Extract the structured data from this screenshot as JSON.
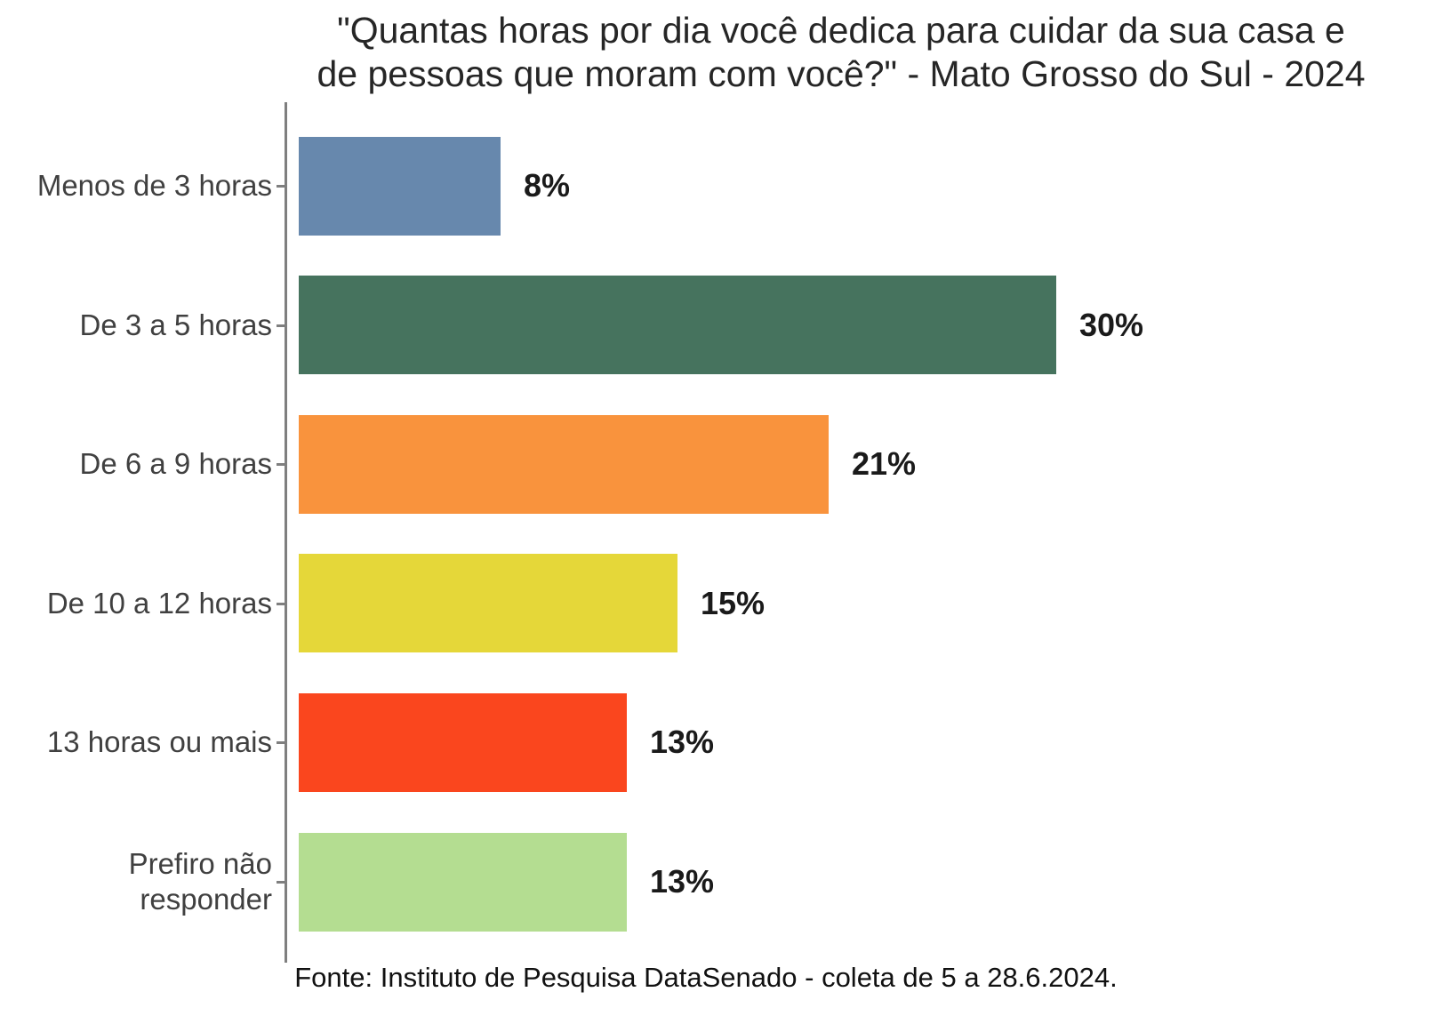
{
  "title": "\"Quantas horas por dia você dedica para cuidar da sua casa e\nde pessoas que moram com você?\" - Mato Grosso do Sul - 2024",
  "footer": "Fonte: Instituto de Pesquisa DataSenado - coleta de 5 a 28.6.2024.",
  "chart_data": {
    "type": "bar",
    "orientation": "horizontal",
    "title": "\"Quantas horas por dia você dedica para cuidar da sua casa e de pessoas que moram com você?\" - Mato Grosso do Sul - 2024",
    "xlabel": "",
    "ylabel": "",
    "x_axis_ticks": "hidden",
    "grid": "off",
    "legend": "none",
    "value_unit": "percent",
    "xlim": [
      0,
      44
    ],
    "categories": [
      "Menos de 3 horas",
      "De 3 a 5 horas",
      "De 6 a 9 horas",
      "De 10 a 12 horas",
      "13 horas ou mais",
      "Prefiro não responder"
    ],
    "values": [
      8,
      30,
      21,
      15,
      13,
      13
    ],
    "axis_line_color": "#7f7f7f",
    "rows": [
      {
        "category": "Menos de 3 horas",
        "value": 8,
        "value_label": "8%",
        "color": "#6788ad"
      },
      {
        "category": "De 3 a 5 horas",
        "value": 30,
        "value_label": "30%",
        "color": "#46735e"
      },
      {
        "category": "De 6 a 9 horas",
        "value": 21,
        "value_label": "21%",
        "color": "#f9933d"
      },
      {
        "category": "De 10 a 12 horas",
        "value": 15,
        "value_label": "15%",
        "color": "#e5d739"
      },
      {
        "category": "13 horas ou mais",
        "value": 13,
        "value_label": "13%",
        "color": "#fa461e"
      },
      {
        "category": "Prefiro não\nresponder",
        "value": 13,
        "value_label": "13%",
        "color": "#b4dd91"
      }
    ],
    "source": "Fonte: Instituto de Pesquisa DataSenado - coleta de 5 a 28.6.2024."
  }
}
